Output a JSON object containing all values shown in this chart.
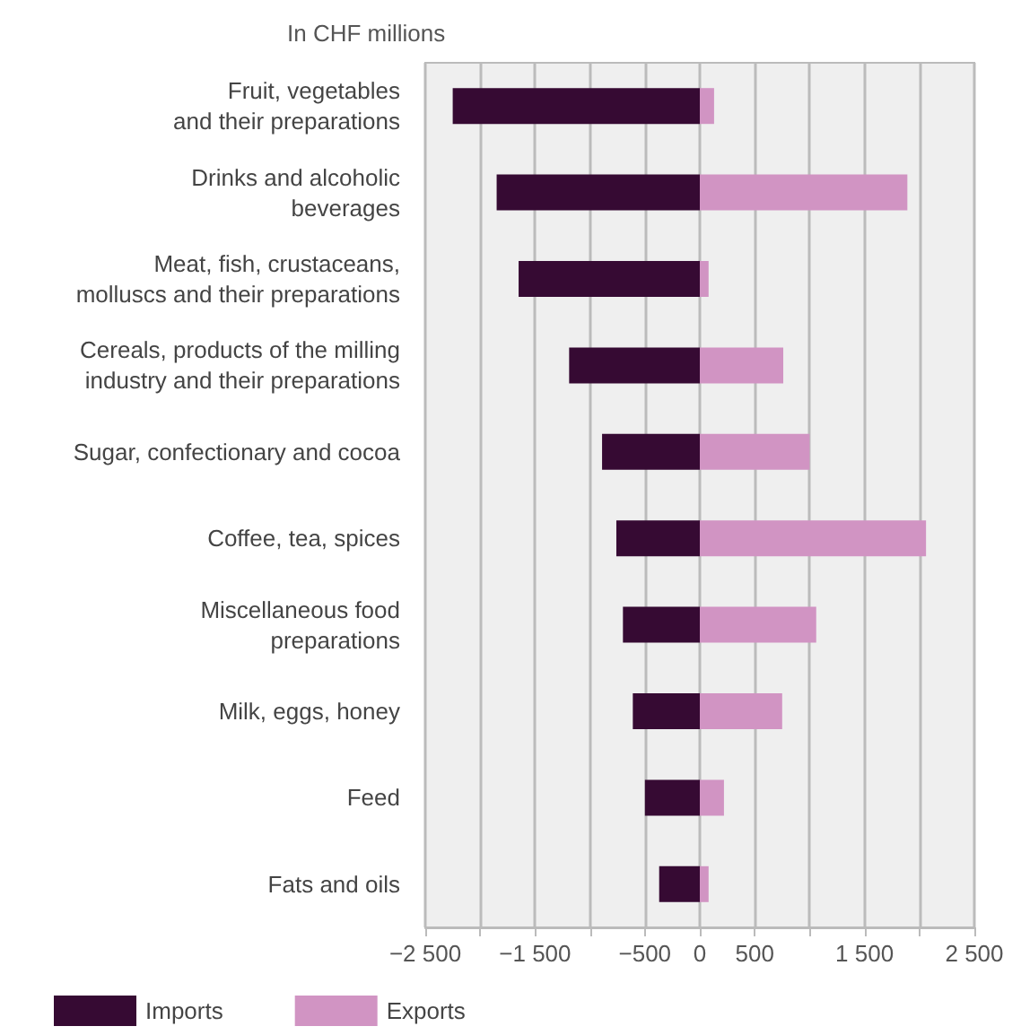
{
  "chart_data": {
    "type": "bar",
    "orientation": "horizontal",
    "stacked": true,
    "ylabel": "In CHF millions",
    "categories": [
      "Fruit, vegetables\nand their preparations",
      "Drinks and alcoholic\nbeverages",
      "Meat, fish, crustaceans,\nmolluscs and their preparations",
      "Cereals, products of the milling\nindustry and their preparations",
      "Sugar, confectionary and cocoa",
      "Coffee, tea, spices",
      "Miscellaneous food\npreparations",
      "Milk, eggs, honey",
      "Feed",
      "Fats and oils"
    ],
    "series": [
      {
        "name": "Imports",
        "color": "#360a33",
        "values": [
          -2250,
          -1850,
          -1650,
          -1190,
          -890,
          -760,
          -700,
          -610,
          -500,
          -370
        ]
      },
      {
        "name": "Exports",
        "color": "#d194c3",
        "values": [
          130,
          1890,
          80,
          760,
          1000,
          2060,
          1060,
          750,
          220,
          80
        ]
      }
    ],
    "xlim": [
      -2500,
      2500
    ],
    "xticks": [
      {
        "value": -2500,
        "label": "−2 500"
      },
      {
        "value": -2000,
        "label": null
      },
      {
        "value": -1500,
        "label": "−1 500"
      },
      {
        "value": -1000,
        "label": null
      },
      {
        "value": -500,
        "label": "−500"
      },
      0,
      500,
      {
        "value": 1000,
        "label": null
      },
      {
        "value": 1500,
        "label": "1 500"
      },
      {
        "value": 2000,
        "label": null
      },
      {
        "value": 2500,
        "label": "2 500"
      }
    ],
    "grid": "x",
    "legend": "bottom left"
  }
}
